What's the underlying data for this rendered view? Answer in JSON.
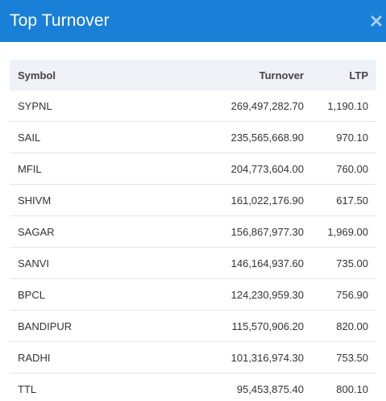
{
  "modal": {
    "title": "Top Turnover",
    "close_icon": "close-icon"
  },
  "table": {
    "headers": {
      "symbol": "Symbol",
      "turnover": "Turnover",
      "ltp": "LTP"
    },
    "rows": [
      {
        "symbol": "SYPNL",
        "turnover": "269,497,282.70",
        "ltp": "1,190.10"
      },
      {
        "symbol": "SAIL",
        "turnover": "235,565,668.90",
        "ltp": "970.10"
      },
      {
        "symbol": "MFIL",
        "turnover": "204,773,604.00",
        "ltp": "760.00"
      },
      {
        "symbol": "SHIVM",
        "turnover": "161,022,176.90",
        "ltp": "617.50"
      },
      {
        "symbol": "SAGAR",
        "turnover": "156,867,977.30",
        "ltp": "1,969.00"
      },
      {
        "symbol": "SANVI",
        "turnover": "146,164,937.60",
        "ltp": "735.00"
      },
      {
        "symbol": "BPCL",
        "turnover": "124,230,959.30",
        "ltp": "756.90"
      },
      {
        "symbol": "BANDIPUR",
        "turnover": "115,570,906.20",
        "ltp": "820.00"
      },
      {
        "symbol": "RADHI",
        "turnover": "101,316,974.30",
        "ltp": "753.50"
      },
      {
        "symbol": "TTL",
        "turnover": "95,453,875.40",
        "ltp": "800.10"
      }
    ]
  },
  "colors": {
    "header_bg": "#1a7fd6",
    "table_head_bg": "#eef1f6"
  }
}
